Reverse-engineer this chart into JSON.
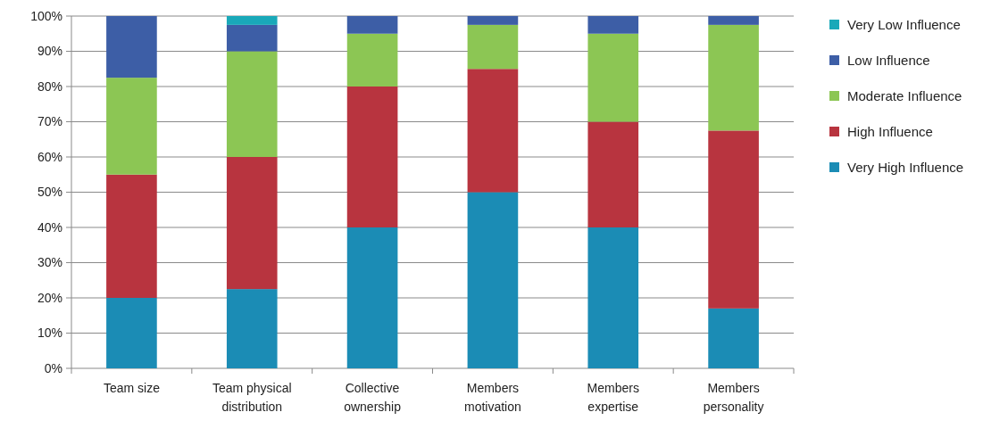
{
  "chart_data": {
    "type": "bar",
    "stacked": true,
    "categories": [
      "Team size",
      "Team physical distribution",
      "Collective ownership",
      "Members motivation",
      "Members expertise",
      "Members personality"
    ],
    "series": [
      {
        "name": "Very High Influence",
        "color": "#1b8cb5",
        "values": [
          20,
          22.5,
          40,
          50,
          40,
          17
        ]
      },
      {
        "name": "High Influence",
        "color": "#b8343f",
        "values": [
          35,
          37.5,
          40,
          35,
          30,
          50.5
        ]
      },
      {
        "name": "Moderate Influence",
        "color": "#8cc654",
        "values": [
          27.5,
          30,
          15,
          12.5,
          25,
          30
        ]
      },
      {
        "name": "Low Influence",
        "color": "#3d5ea6",
        "values": [
          17.5,
          7.5,
          5,
          2.5,
          5,
          2.5
        ]
      },
      {
        "name": "Very Low Influence",
        "color": "#19a9b9",
        "values": [
          0,
          2.5,
          0,
          0,
          0,
          0
        ]
      }
    ],
    "ylim": [
      0,
      100
    ],
    "yticks": [
      {
        "value": 0,
        "label": "0%"
      },
      {
        "value": 10,
        "label": "10%"
      },
      {
        "value": 20,
        "label": "20%"
      },
      {
        "value": 30,
        "label": "30%"
      },
      {
        "value": 40,
        "label": "40%"
      },
      {
        "value": 50,
        "label": "50%"
      },
      {
        "value": 60,
        "label": "60%"
      },
      {
        "value": 70,
        "label": "70%"
      },
      {
        "value": 80,
        "label": "80%"
      },
      {
        "value": 90,
        "label": "90%"
      },
      {
        "value": 100,
        "label": "100%"
      }
    ],
    "grid": "y",
    "legend": "right"
  }
}
